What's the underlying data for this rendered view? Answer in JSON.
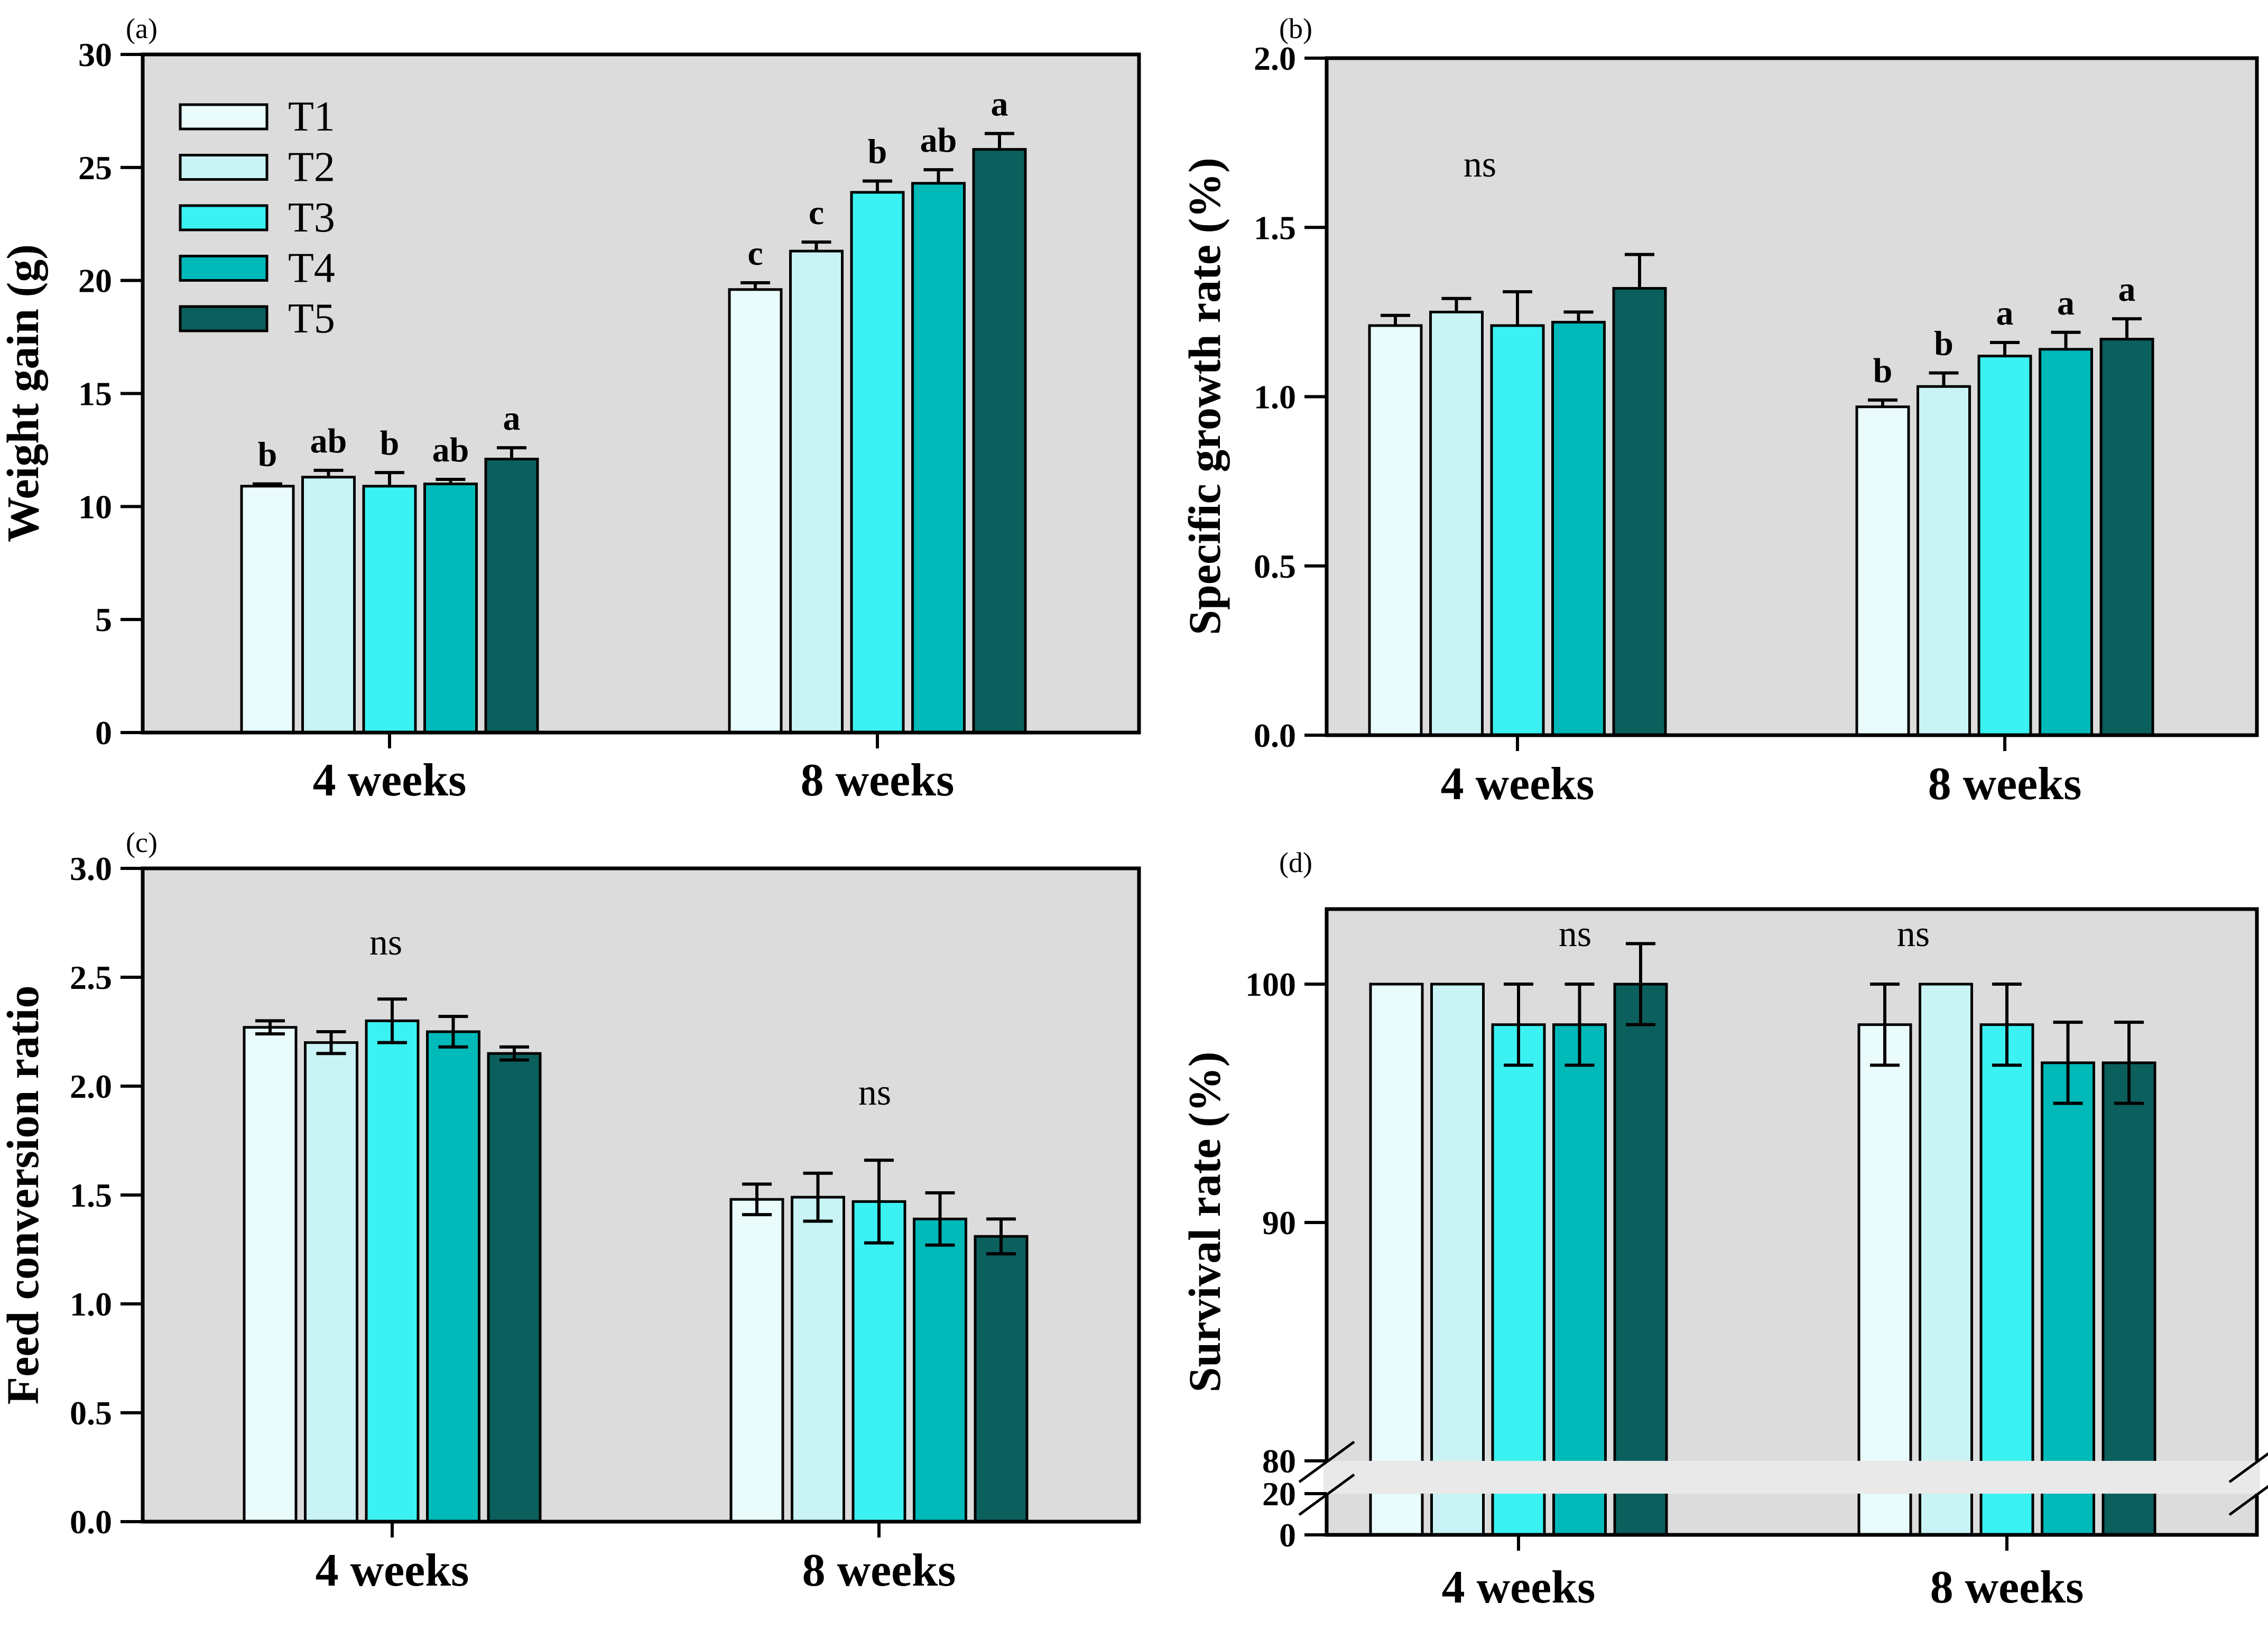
{
  "figure": {
    "background": "#ffffff",
    "plot_background": "#dcdcdc",
    "break_band_color": "#e9e9e9",
    "outline_color": "#000000",
    "categories": [
      "4 weeks",
      "8 weeks"
    ],
    "legend": {
      "items": [
        {
          "label": "T1",
          "color": "#e9fbfb"
        },
        {
          "label": "T2",
          "color": "#c9f3f5"
        },
        {
          "label": "T3",
          "color": "#3bf1f1"
        },
        {
          "label": "T4",
          "color": "#00b9b9"
        },
        {
          "label": "T5",
          "color": "#0b5f5d"
        }
      ]
    }
  },
  "chart_data": [
    {
      "id": "a",
      "type": "bar",
      "panel_label": "(a)",
      "ylabel": "Weight gain (g)",
      "ylim": [
        0,
        30
      ],
      "yticks": [
        0,
        5,
        10,
        15,
        20,
        25,
        30
      ],
      "ytick_decimals": 0,
      "grid": false,
      "legend_position": "upper-left-inside",
      "show_legend": true,
      "error_direction": "up",
      "categories": [
        "4 weeks",
        "8 weeks"
      ],
      "series": [
        {
          "name": "T1",
          "values": [
            10.9,
            19.6
          ],
          "errors": [
            0.1,
            0.3
          ]
        },
        {
          "name": "T2",
          "values": [
            11.3,
            21.3
          ],
          "errors": [
            0.3,
            0.4
          ]
        },
        {
          "name": "T3",
          "values": [
            10.9,
            23.9
          ],
          "errors": [
            0.6,
            0.5
          ]
        },
        {
          "name": "T4",
          "values": [
            11.0,
            24.3
          ],
          "errors": [
            0.2,
            0.6
          ]
        },
        {
          "name": "T5",
          "values": [
            12.1,
            25.8
          ],
          "errors": [
            0.5,
            0.7
          ]
        }
      ],
      "sig_letters": [
        [
          "b",
          "ab",
          "b",
          "ab",
          "a"
        ],
        [
          "c",
          "c",
          "b",
          "ab",
          "a"
        ]
      ],
      "ns_annotations": []
    },
    {
      "id": "b",
      "type": "bar",
      "panel_label": "(b)",
      "ylabel": "Specific growth rate (%)",
      "ylim": [
        0.0,
        2.0
      ],
      "yticks": [
        0.0,
        0.5,
        1.0,
        1.5,
        2.0
      ],
      "ytick_decimals": 1,
      "grid": false,
      "show_legend": false,
      "error_direction": "up",
      "categories": [
        "4 weeks",
        "8 weeks"
      ],
      "series": [
        {
          "name": "T1",
          "values": [
            1.21,
            0.97
          ],
          "errors": [
            0.03,
            0.02
          ]
        },
        {
          "name": "T2",
          "values": [
            1.25,
            1.03
          ],
          "errors": [
            0.04,
            0.04
          ]
        },
        {
          "name": "T3",
          "values": [
            1.21,
            1.12
          ],
          "errors": [
            0.1,
            0.04
          ]
        },
        {
          "name": "T4",
          "values": [
            1.22,
            1.14
          ],
          "errors": [
            0.03,
            0.05
          ]
        },
        {
          "name": "T5",
          "values": [
            1.32,
            1.17
          ],
          "errors": [
            0.1,
            0.06
          ]
        }
      ],
      "sig_letters": [
        null,
        [
          "b",
          "b",
          "a",
          "a",
          "a"
        ]
      ],
      "ns_annotations": [
        {
          "group": 0,
          "text": "ns"
        }
      ]
    },
    {
      "id": "c",
      "type": "bar",
      "panel_label": "(c)",
      "ylabel": "Feed conversion ratio",
      "ylim": [
        0.0,
        3.0
      ],
      "yticks": [
        0.0,
        0.5,
        1.0,
        1.5,
        2.0,
        2.5,
        3.0
      ],
      "ytick_decimals": 1,
      "grid": false,
      "show_legend": false,
      "error_direction": "both",
      "categories": [
        "4 weeks",
        "8 weeks"
      ],
      "series": [
        {
          "name": "T1",
          "values": [
            2.27,
            1.48
          ],
          "errors": [
            0.03,
            0.07
          ]
        },
        {
          "name": "T2",
          "values": [
            2.2,
            1.49
          ],
          "errors": [
            0.05,
            0.11
          ]
        },
        {
          "name": "T3",
          "values": [
            2.3,
            1.47
          ],
          "errors": [
            0.1,
            0.19
          ]
        },
        {
          "name": "T4",
          "values": [
            2.25,
            1.39
          ],
          "errors": [
            0.07,
            0.12
          ]
        },
        {
          "name": "T5",
          "values": [
            2.15,
            1.31
          ],
          "errors": [
            0.03,
            0.08
          ]
        }
      ],
      "sig_letters": [
        null,
        null
      ],
      "ns_annotations": [
        {
          "group": 0,
          "text": "ns"
        },
        {
          "group": 1,
          "text": "ns"
        }
      ]
    },
    {
      "id": "d",
      "type": "bar",
      "panel_label": "(d)",
      "ylabel": "Survival rate (%)",
      "ylim": [
        0,
        100
      ],
      "yticks": [
        0,
        20,
        80,
        90,
        100
      ],
      "ytick_decimals": 0,
      "axis_break": {
        "lower_max": 20,
        "upper_min": 80
      },
      "grid": false,
      "show_legend": false,
      "error_direction": "both",
      "categories": [
        "4 weeks",
        "8 weeks"
      ],
      "series": [
        {
          "name": "T1",
          "values": [
            100.0,
            98.3
          ],
          "errors": [
            0,
            1.7
          ]
        },
        {
          "name": "T2",
          "values": [
            100.0,
            100.0
          ],
          "errors": [
            0,
            0
          ]
        },
        {
          "name": "T3",
          "values": [
            98.3,
            98.3
          ],
          "errors": [
            1.7,
            1.7
          ]
        },
        {
          "name": "T4",
          "values": [
            98.3,
            96.7
          ],
          "errors": [
            1.7,
            1.7
          ]
        },
        {
          "name": "T5",
          "values": [
            100.0,
            96.7
          ],
          "errors": [
            1.7,
            1.7
          ]
        }
      ],
      "sig_letters": [
        null,
        null
      ],
      "ns_annotations": [
        {
          "group": 0,
          "text": "ns"
        },
        {
          "group": 1,
          "text": "ns"
        }
      ]
    }
  ]
}
